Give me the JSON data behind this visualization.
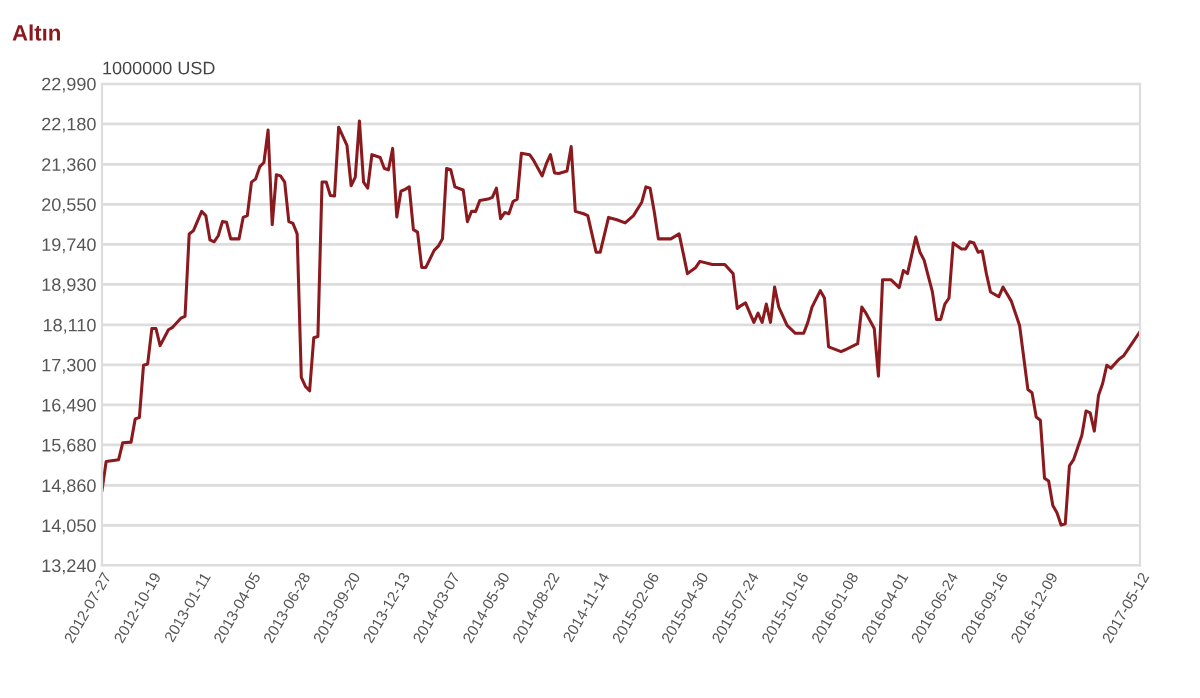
{
  "chart_data": {
    "type": "line",
    "title": "Altın",
    "ylabel": "1000000 USD",
    "x": [
      "2012-07-27",
      "2012-08-03",
      "2012-08-24",
      "2012-08-31",
      "2012-09-14",
      "2012-09-21",
      "2012-09-28",
      "2012-10-05",
      "2012-10-12",
      "2012-10-19",
      "2012-10-26",
      "2012-11-02",
      "2012-11-16",
      "2012-11-23",
      "2012-12-07",
      "2012-12-14",
      "2012-12-21",
      "2012-12-28",
      "2013-01-11",
      "2013-01-18",
      "2013-01-25",
      "2013-02-01",
      "2013-02-08",
      "2013-02-15",
      "2013-02-22",
      "2013-03-01",
      "2013-03-15",
      "2013-03-22",
      "2013-03-29",
      "2013-04-05",
      "2013-04-12",
      "2013-04-19",
      "2013-04-26",
      "2013-05-03",
      "2013-05-10",
      "2013-05-17",
      "2013-05-24",
      "2013-05-31",
      "2013-06-07",
      "2013-06-14",
      "2013-06-21",
      "2013-06-28",
      "2013-07-05",
      "2013-07-12",
      "2013-07-19",
      "2013-07-26",
      "2013-08-02",
      "2013-08-09",
      "2013-08-16",
      "2013-08-23",
      "2013-08-30",
      "2013-09-13",
      "2013-09-20",
      "2013-09-27",
      "2013-10-04",
      "2013-10-11",
      "2013-10-18",
      "2013-10-25",
      "2013-11-08",
      "2013-11-15",
      "2013-11-22",
      "2013-11-29",
      "2013-12-06",
      "2013-12-13",
      "2013-12-20",
      "2013-12-27",
      "2014-01-03",
      "2014-01-10",
      "2014-01-17",
      "2014-01-24",
      "2014-02-07",
      "2014-02-14",
      "2014-02-21",
      "2014-02-28",
      "2014-03-07",
      "2014-03-14",
      "2014-03-28",
      "2014-04-04",
      "2014-04-11",
      "2014-04-18",
      "2014-04-25",
      "2014-05-09",
      "2014-05-16",
      "2014-05-23",
      "2014-05-30",
      "2014-06-06",
      "2014-06-13",
      "2014-06-20",
      "2014-06-27",
      "2014-07-04",
      "2014-07-18",
      "2014-07-25",
      "2014-08-08",
      "2014-08-15",
      "2014-08-22",
      "2014-08-29",
      "2014-09-05",
      "2014-09-19",
      "2014-09-26",
      "2014-10-03",
      "2014-10-17",
      "2014-10-24",
      "2014-11-07",
      "2014-11-14",
      "2014-11-28",
      "2014-12-12",
      "2014-12-26",
      "2015-01-09",
      "2015-01-23",
      "2015-01-30",
      "2015-02-06",
      "2015-02-13",
      "2015-02-20",
      "2015-03-13",
      "2015-03-27",
      "2015-04-03",
      "2015-04-10",
      "2015-04-24",
      "2015-05-01",
      "2015-05-22",
      "2015-06-12",
      "2015-06-26",
      "2015-07-03",
      "2015-07-10",
      "2015-07-17",
      "2015-07-31",
      "2015-08-07",
      "2015-08-14",
      "2015-08-21",
      "2015-08-28",
      "2015-09-04",
      "2015-09-11",
      "2015-09-25",
      "2015-10-09",
      "2015-10-23",
      "2015-10-30",
      "2015-11-06",
      "2015-11-20",
      "2015-11-27",
      "2015-12-04",
      "2015-12-25",
      "2016-01-01",
      "2016-01-22",
      "2016-01-29",
      "2016-02-05",
      "2016-02-19",
      "2016-02-26",
      "2016-03-04",
      "2016-03-18",
      "2016-04-01",
      "2016-04-08",
      "2016-04-15",
      "2016-04-29",
      "2016-05-06",
      "2016-05-13",
      "2016-05-27",
      "2016-06-03",
      "2016-06-10",
      "2016-06-17",
      "2016-06-24",
      "2016-07-01",
      "2016-07-15",
      "2016-07-22",
      "2016-07-29",
      "2016-08-05",
      "2016-08-12",
      "2016-08-19",
      "2016-08-26",
      "2016-09-02",
      "2016-09-16",
      "2016-09-23",
      "2016-10-07",
      "2016-10-14",
      "2016-10-21",
      "2016-11-04",
      "2016-11-11",
      "2016-11-18",
      "2016-11-25",
      "2016-12-02",
      "2016-12-09",
      "2016-12-16",
      "2016-12-23",
      "2016-12-30",
      "2017-01-06",
      "2017-01-13",
      "2017-01-20",
      "2017-02-03",
      "2017-02-10",
      "2017-02-17",
      "2017-02-24",
      "2017-03-03",
      "2017-03-10",
      "2017-03-17",
      "2017-03-24",
      "2017-04-07",
      "2017-04-14",
      "2017-04-28",
      "2017-05-12"
    ],
    "series": [
      {
        "color": "#8b1a1f",
        "values": [
          14760,
          15343,
          15380,
          15724,
          15735,
          16206,
          16232,
          17292,
          17318,
          18034,
          18034,
          17689,
          18010,
          18059,
          18244,
          18282,
          19950,
          20013,
          20406,
          20321,
          19828,
          19791,
          19913,
          20199,
          20184,
          19850,
          19850,
          20284,
          20321,
          20999,
          21062,
          21311,
          21396,
          22052,
          20136,
          21148,
          21125,
          21000,
          20199,
          20162,
          19950,
          17048,
          16862,
          16774,
          17848,
          17874,
          21000,
          21000,
          20729,
          20718,
          22111,
          21741,
          20925,
          21100,
          22237,
          21000,
          20877,
          21555,
          21496,
          21274,
          21248,
          21681,
          20295,
          20814,
          20851,
          20903,
          20036,
          19987,
          19272,
          19272,
          19617,
          19702,
          19850,
          21274,
          21248,
          20903,
          20840,
          20199,
          20406,
          20406,
          20629,
          20655,
          20692,
          20877,
          20258,
          20384,
          20358,
          20606,
          20655,
          21581,
          21555,
          21433,
          21125,
          21366,
          21555,
          21185,
          21174,
          21222,
          21718,
          20406,
          20358,
          20321,
          19580,
          19580,
          20284,
          20236,
          20173,
          20321,
          20592,
          20903,
          20877,
          20406,
          19850,
          19850,
          19950,
          19554,
          19146,
          19272,
          19394,
          19331,
          19331,
          19146,
          18442,
          18505,
          18553,
          18160,
          18345,
          18160,
          18530,
          18160,
          18875,
          18468,
          18097,
          17938,
          17938,
          18160,
          18468,
          18801,
          18653,
          17664,
          17567,
          17605,
          17727,
          18468,
          18345,
          18034,
          17070,
          19024,
          19024,
          18864,
          19209,
          19146,
          19887,
          19580,
          19420,
          18775,
          18219,
          18219,
          18530,
          18653,
          19765,
          19643,
          19643,
          19791,
          19765,
          19580,
          19605,
          19146,
          18775,
          18678,
          18875,
          18590,
          18345,
          18097,
          16799,
          16736,
          16243,
          16180,
          15006,
          14946,
          14453,
          14305,
          14056,
          14082,
          15253,
          15380,
          15872,
          16366,
          16329,
          15958,
          16677,
          16922,
          17292,
          17233,
          17418,
          17478,
          17726,
          17974
        ]
      }
    ],
    "xlim": [
      "2012-07-27",
      "2017-05-12"
    ],
    "xticks": [
      "2012-07-27",
      "2012-10-19",
      "2013-01-11",
      "2013-04-05",
      "2013-06-28",
      "2013-09-20",
      "2013-12-13",
      "2014-03-07",
      "2014-05-30",
      "2014-08-22",
      "2014-11-14",
      "2015-02-06",
      "2015-04-30",
      "2015-07-24",
      "2015-10-16",
      "2016-01-08",
      "2016-04-01",
      "2016-06-24",
      "2016-09-16",
      "2016-12-09",
      "2017-05-12"
    ],
    "ylim": [
      13240,
      22990
    ],
    "yticks": [
      {
        "value": 13240,
        "label": "13,240"
      },
      {
        "value": 14050,
        "label": "14,050"
      },
      {
        "value": 14860,
        "label": "14,860"
      },
      {
        "value": 15680,
        "label": "15,680"
      },
      {
        "value": 16490,
        "label": "16,490"
      },
      {
        "value": 17300,
        "label": "17,300"
      },
      {
        "value": 18110,
        "label": "18,110"
      },
      {
        "value": 18930,
        "label": "18,930"
      },
      {
        "value": 19740,
        "label": "19,740"
      },
      {
        "value": 20550,
        "label": "20,550"
      },
      {
        "value": 21360,
        "label": "21,360"
      },
      {
        "value": 22180,
        "label": "22,180"
      },
      {
        "value": 22990,
        "label": "22,990"
      }
    ],
    "grid": "y",
    "marker": "none",
    "line_style": "solid"
  }
}
